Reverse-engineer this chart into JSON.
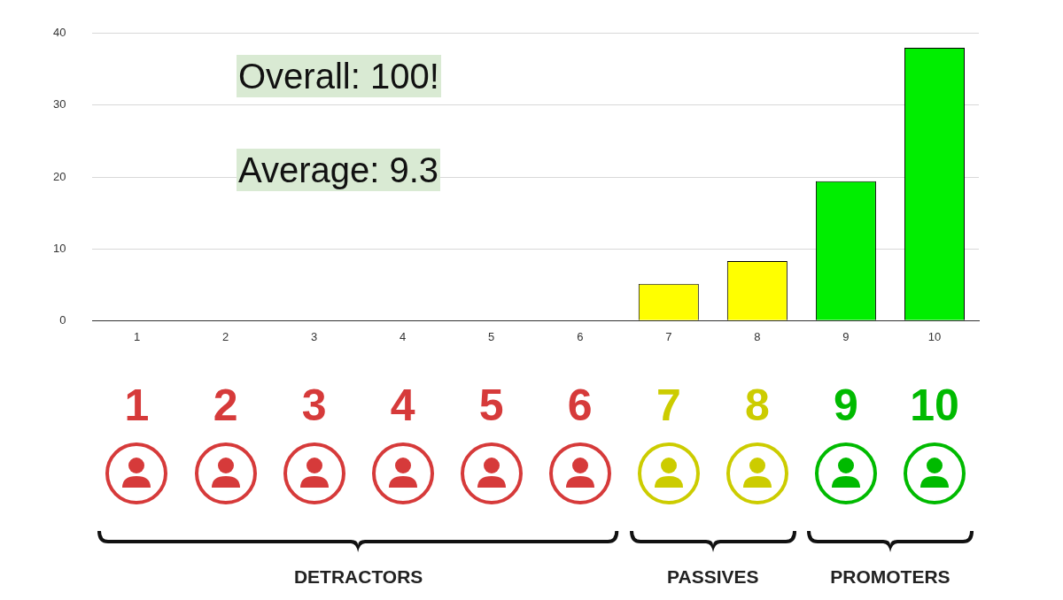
{
  "chart_data": {
    "type": "bar",
    "categories": [
      "1",
      "2",
      "3",
      "4",
      "5",
      "6",
      "7",
      "8",
      "9",
      "10"
    ],
    "values": [
      0,
      0,
      0,
      0,
      0,
      0,
      5.1,
      8.3,
      19.4,
      38
    ],
    "colors": [
      "#d63a3a",
      "#d63a3a",
      "#d63a3a",
      "#d63a3a",
      "#d63a3a",
      "#d63a3a",
      "#ffff00",
      "#ffff00",
      "#00ee00",
      "#00ee00"
    ],
    "ylim": [
      0,
      40
    ],
    "yticks": [
      0,
      10,
      20,
      30,
      40
    ],
    "grid": "y",
    "legend": false,
    "annotations": [
      "Overall: 100!",
      "Average: 9.3",
      "DETRACTORS",
      "PASSIVES",
      "PROMOTERS"
    ]
  }
}
